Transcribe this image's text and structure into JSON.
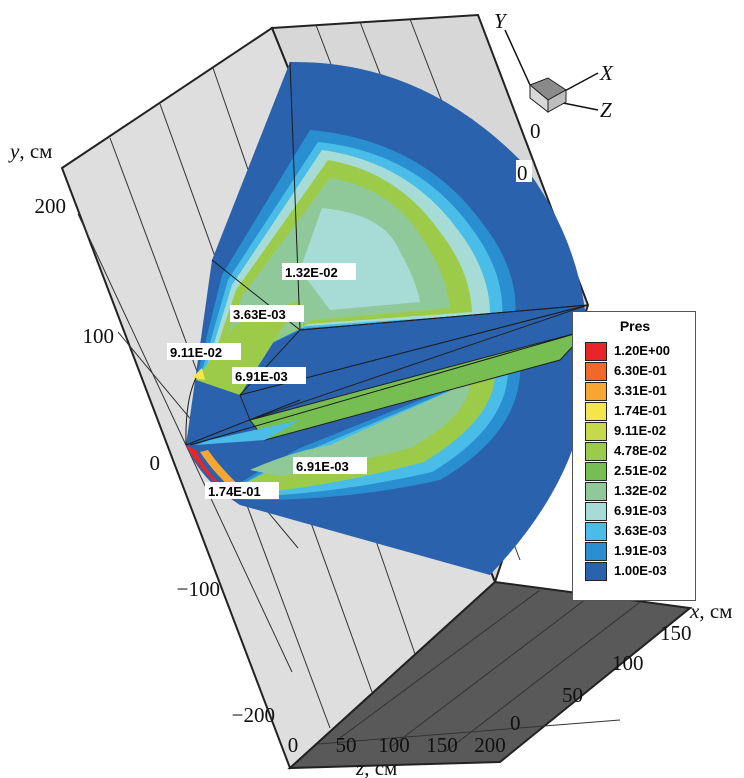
{
  "chart_data": {
    "type": "heatmap",
    "title": "",
    "variable": "Pres",
    "axes": {
      "y": {
        "label": "y, см",
        "ticks": [
          "200",
          "100",
          "0",
          "−100",
          "−200"
        ]
      },
      "z": {
        "label": "z, см",
        "ticks": [
          "0",
          "50",
          "100",
          "150",
          "200"
        ]
      },
      "x": {
        "label": "x, см",
        "ticks": [
          "0",
          "50",
          "100",
          "150"
        ]
      }
    },
    "orientation_triad": {
      "labels": [
        "Y",
        "X",
        "Z"
      ],
      "origin_labels": [
        "0",
        "0"
      ]
    },
    "legend": {
      "title": "Pres",
      "placement": "right",
      "levels": [
        {
          "label": "1.20E+00",
          "value": 1.2,
          "color": "#e8262a"
        },
        {
          "label": "6.30E-01",
          "value": 0.63,
          "color": "#f2672a"
        },
        {
          "label": "3.31E-01",
          "value": 0.331,
          "color": "#f7a634"
        },
        {
          "label": "1.74E-01",
          "value": 0.174,
          "color": "#f4e54a"
        },
        {
          "label": "9.11E-02",
          "value": 0.0911,
          "color": "#c6d94a"
        },
        {
          "label": "4.78E-02",
          "value": 0.0478,
          "color": "#9ccb4a"
        },
        {
          "label": "2.51E-02",
          "value": 0.0251,
          "color": "#76bd52"
        },
        {
          "label": "1.32E-02",
          "value": 0.0132,
          "color": "#8fc99a"
        },
        {
          "label": "6.91E-03",
          "value": 0.00691,
          "color": "#a7dcd6"
        },
        {
          "label": "3.63E-03",
          "value": 0.00363,
          "color": "#49bde8"
        },
        {
          "label": "1.91E-03",
          "value": 0.00191,
          "color": "#2a8fd0"
        },
        {
          "label": "1.00E-03",
          "value": 0.001,
          "color": "#2a62ad"
        }
      ]
    },
    "contour_labels": [
      {
        "text": "1.32E-02"
      },
      {
        "text": "3.63E-03"
      },
      {
        "text": "9.11E-02"
      },
      {
        "text": "6.91E-03"
      },
      {
        "text": "6.91E-03"
      },
      {
        "text": "1.74E-01"
      }
    ]
  }
}
